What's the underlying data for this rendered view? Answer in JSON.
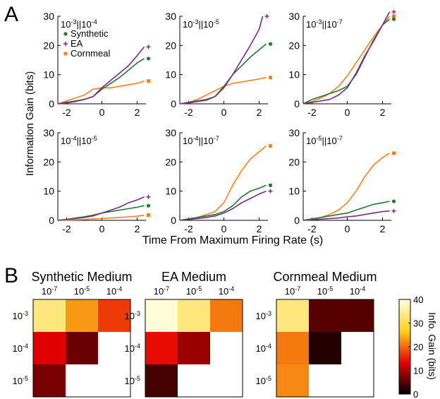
{
  "panel_letters": {
    "a": "A",
    "b": "B"
  },
  "colors": {
    "synthetic": "#1f7a2e",
    "ea": "#7b2a8c",
    "cornmeal": "#ff7f1f"
  },
  "chart_data": [
    {
      "type": "line",
      "panel": "A",
      "ylabel": "Information Gain (bits)",
      "xlabel": "Time From Maximum Firing Rate (s)",
      "xlim": [
        -2.5,
        2.5
      ],
      "ylim": [
        0,
        30
      ],
      "xticks": [
        "-2",
        "0",
        "2"
      ],
      "yticks": [
        "0",
        "10",
        "20",
        "30"
      ],
      "legend": [
        {
          "name": "Synthetic",
          "marker": "•"
        },
        {
          "name": "EA",
          "marker": "+"
        },
        {
          "name": "Cornmeal",
          "marker": "■"
        }
      ],
      "subplots": [
        {
          "title": [
            "10",
            "-3",
            "||10",
            "-4"
          ],
          "series": [
            {
              "key": "synthetic",
              "x": [
                -2.5,
                -2,
                -1.5,
                -1,
                -0.5,
                0,
                0.5,
                1,
                1.5,
                2,
                2.4
              ],
              "y": [
                0,
                0.5,
                1,
                1.5,
                2.5,
                5,
                7,
                9,
                11.5,
                14,
                15.5
              ]
            },
            {
              "key": "ea",
              "x": [
                -2.5,
                -2,
                -1.5,
                -1,
                -0.5,
                0,
                0.5,
                1,
                1.5,
                2,
                2.4
              ],
              "y": [
                0,
                0.3,
                0.8,
                1.5,
                2.5,
                5.5,
                8,
                10.5,
                13,
                16.5,
                19.5
              ]
            },
            {
              "key": "cornmeal",
              "x": [
                -2.5,
                -2,
                -1.5,
                -1,
                -0.5,
                0,
                0.5,
                1,
                1.5,
                2,
                2.4
              ],
              "y": [
                0,
                1,
                2,
                3,
                5,
                5.5,
                5.5,
                6,
                6.5,
                7,
                7.8
              ]
            }
          ]
        },
        {
          "title": [
            "10",
            "-3",
            "||10",
            "-5"
          ],
          "series": [
            {
              "key": "synthetic",
              "x": [
                -2.5,
                -2,
                -1.5,
                -1,
                -0.5,
                0,
                0.5,
                1,
                1.5,
                2,
                2.4
              ],
              "y": [
                0,
                0.5,
                1,
                1.5,
                2.5,
                6,
                10,
                13,
                16,
                18.5,
                20.5
              ]
            },
            {
              "key": "ea",
              "x": [
                -2.5,
                -2,
                -1.5,
                -1,
                -0.5,
                0,
                0.5,
                1,
                1.5,
                2,
                2.2
              ],
              "y": [
                0,
                0.3,
                0.8,
                1.2,
                2.5,
                5.5,
                10,
                15,
                20,
                25.5,
                30
              ]
            },
            {
              "key": "cornmeal",
              "x": [
                -2.5,
                -2,
                -1.5,
                -1,
                -0.5,
                0,
                0.5,
                1,
                1.5,
                2,
                2.4
              ],
              "y": [
                0,
                0.5,
                1.5,
                3,
                4.5,
                6,
                7,
                7.5,
                8,
                8.5,
                9
              ]
            }
          ]
        },
        {
          "title": [
            "10",
            "-3",
            "||10",
            "-7"
          ],
          "series": [
            {
              "key": "synthetic",
              "x": [
                -2.5,
                -2,
                -1.5,
                -1,
                -0.5,
                0,
                0.5,
                1,
                1.5,
                2,
                2.4
              ],
              "y": [
                0,
                1.5,
                2.5,
                3.5,
                4.5,
                6,
                10,
                16,
                22,
                27,
                29
              ]
            },
            {
              "key": "ea",
              "x": [
                -2.5,
                -2,
                -1.5,
                -1,
                -0.5,
                0,
                0.5,
                1,
                1.5,
                2,
                2.4
              ],
              "y": [
                0,
                0.5,
                1,
                1.5,
                3,
                5.5,
                10.5,
                16.5,
                21.5,
                27,
                31.5
              ]
            },
            {
              "key": "cornmeal",
              "x": [
                -2.5,
                -2,
                -1.5,
                -1,
                -0.5,
                0,
                0.5,
                1,
                1.5,
                2,
                2.4
              ],
              "y": [
                0,
                0.8,
                2,
                3.5,
                6,
                9.5,
                14,
                18.5,
                23,
                27,
                30
              ]
            }
          ]
        },
        {
          "title": [
            "10",
            "-4",
            "||10",
            "-5"
          ],
          "series": [
            {
              "key": "synthetic",
              "x": [
                -2.5,
                -2,
                -1.5,
                -1,
                -0.5,
                0,
                0.5,
                1,
                1.5,
                2,
                2.4
              ],
              "y": [
                0,
                0.3,
                0.8,
                1.2,
                1.8,
                2.5,
                3,
                3.5,
                4,
                4.5,
                5
              ]
            },
            {
              "key": "ea",
              "x": [
                -2.5,
                -2,
                -1.5,
                -1,
                -0.5,
                0,
                0.5,
                1,
                1.5,
                2,
                2.4
              ],
              "y": [
                0,
                0.3,
                0.6,
                1,
                1.5,
                2.5,
                3.5,
                4.5,
                6,
                7,
                8
              ]
            },
            {
              "key": "cornmeal",
              "x": [
                -2.5,
                -2,
                -1.5,
                -1,
                -0.5,
                0,
                0.5,
                1,
                1.5,
                2,
                2.4
              ],
              "y": [
                0,
                0.1,
                0.2,
                0.3,
                0.5,
                0.6,
                0.8,
                1,
                1.2,
                1.4,
                1.8
              ]
            }
          ]
        },
        {
          "title": [
            "10",
            "-4",
            "||10",
            "-7"
          ],
          "series": [
            {
              "key": "synthetic",
              "x": [
                -2.5,
                -2,
                -1.5,
                -1,
                -0.5,
                0,
                0.5,
                1,
                1.5,
                2,
                2.4
              ],
              "y": [
                0,
                0.5,
                1,
                1.5,
                2,
                3,
                5,
                8,
                10,
                11,
                12
              ]
            },
            {
              "key": "ea",
              "x": [
                -2.5,
                -2,
                -1.5,
                -1,
                -0.5,
                0,
                0.5,
                1,
                1.5,
                2,
                2.4
              ],
              "y": [
                0,
                0.3,
                0.6,
                1,
                1.5,
                2.5,
                4,
                6,
                7.5,
                9,
                10
              ]
            },
            {
              "key": "cornmeal",
              "x": [
                -2.5,
                -2,
                -1.5,
                -1,
                -0.5,
                0,
                0.5,
                1,
                1.5,
                2,
                2.4
              ],
              "y": [
                0,
                0.5,
                1,
                2,
                3,
                6,
                12,
                17,
                21,
                23.5,
                25.5
              ]
            }
          ]
        },
        {
          "title": [
            "10",
            "-5",
            "||10",
            "-7"
          ],
          "series": [
            {
              "key": "synthetic",
              "x": [
                -2.5,
                -2,
                -1.5,
                -1,
                -0.5,
                0,
                0.5,
                1,
                1.5,
                2,
                2.4
              ],
              "y": [
                0,
                0.5,
                1,
                1.5,
                2,
                2.5,
                3.5,
                4.5,
                5.5,
                6,
                6.5
              ]
            },
            {
              "key": "ea",
              "x": [
                -2.5,
                -2,
                -1.5,
                -1,
                -0.5,
                0,
                0.5,
                1,
                1.5,
                2,
                2.4
              ],
              "y": [
                0,
                0.2,
                0.4,
                0.6,
                0.8,
                1.2,
                1.5,
                2,
                2.5,
                3,
                3.2
              ]
            },
            {
              "key": "cornmeal",
              "x": [
                -2.5,
                -2,
                -1.5,
                -1,
                -0.5,
                0,
                0.5,
                1,
                1.5,
                2,
                2.4
              ],
              "y": [
                0,
                0.5,
                1,
                2,
                3.5,
                6,
                10,
                15,
                19,
                21.5,
                23
              ]
            }
          ]
        }
      ]
    },
    {
      "type": "heatmap",
      "panel": "B",
      "col_labels": [
        [
          "10",
          "-7"
        ],
        [
          "10",
          "-5"
        ],
        [
          "10",
          "-4"
        ]
      ],
      "row_labels": [
        [
          "10",
          "-3"
        ],
        [
          "10",
          "-4"
        ],
        [
          "10",
          "-5"
        ]
      ],
      "colorbar": {
        "label": "Info. Gain (bits)",
        "ticks": [
          "0",
          "10",
          "20",
          "30",
          "40"
        ],
        "range": [
          0,
          40
        ]
      },
      "maps": [
        {
          "title": "Synthetic Medium",
          "values": [
            [
              33,
              23,
              17
            ],
            [
              13,
              6,
              null
            ],
            [
              7,
              null,
              null
            ]
          ]
        },
        {
          "title": "EA Medium",
          "values": [
            [
              39,
              33,
              21
            ],
            [
              14,
              9,
              null
            ],
            [
              4,
              null,
              null
            ]
          ]
        },
        {
          "title": "Cornmeal Medium",
          "values": [
            [
              33,
              5,
              5
            ],
            [
              21,
              2,
              null
            ],
            [
              22,
              null,
              null
            ]
          ]
        }
      ]
    }
  ]
}
